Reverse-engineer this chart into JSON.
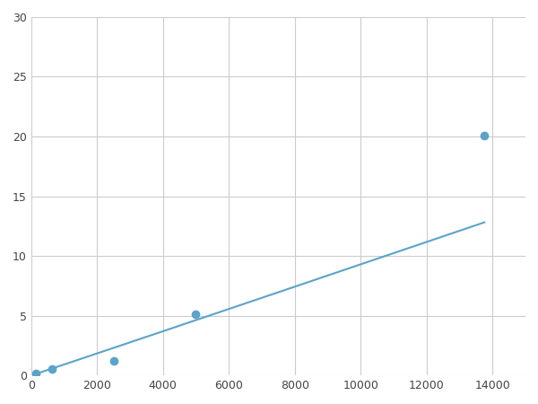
{
  "x": [
    156,
    312,
    625,
    1250,
    2500,
    5000,
    13750
  ],
  "y": [
    0.18,
    0.35,
    0.55,
    0.85,
    1.2,
    5.1,
    20.1
  ],
  "marker_x": [
    156,
    625,
    2500,
    5000,
    13750
  ],
  "marker_y": [
    0.18,
    0.55,
    1.2,
    5.1,
    20.1
  ],
  "line_color": "#5BA3C9",
  "marker_color": "#5BA3C9",
  "marker_size": 7,
  "xlim": [
    0,
    15000
  ],
  "ylim": [
    0,
    30
  ],
  "xticks": [
    0,
    2000,
    4000,
    6000,
    8000,
    10000,
    12000,
    14000
  ],
  "yticks": [
    0,
    5,
    10,
    15,
    20,
    25,
    30
  ],
  "grid_color": "#cccccc",
  "background_color": "#ffffff",
  "figsize": [
    6.0,
    4.5
  ],
  "dpi": 100
}
